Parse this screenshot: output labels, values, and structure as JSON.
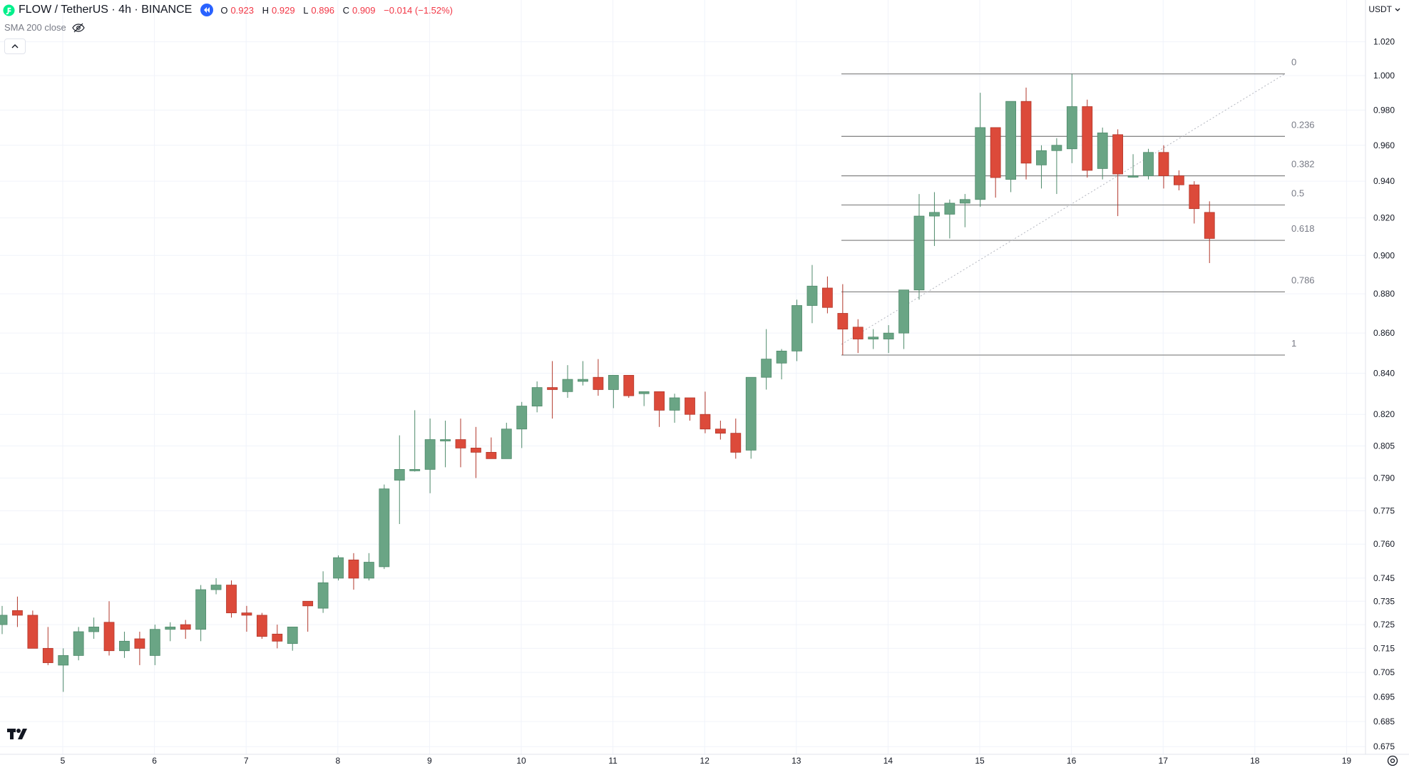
{
  "header": {
    "symbol": "FLOW / TetherUS · 4h · BINANCE",
    "ohlc": {
      "o_label": "O",
      "o": "0.923",
      "h_label": "H",
      "h": "0.929",
      "l_label": "L",
      "l": "0.896",
      "c_label": "C",
      "c": "0.909",
      "change": "−0.014 (−1.52%)"
    }
  },
  "indicator": {
    "label": "SMA 200 close"
  },
  "currency": {
    "label": "USDT"
  },
  "colors": {
    "up": "#6aa585",
    "down": "#dc4a3a",
    "fib": "#8a8a8a",
    "grid": "#f0f3fa",
    "text": "#131722"
  },
  "chart_data": {
    "type": "candlestick",
    "title": "FLOW / TetherUS · 4h · BINANCE",
    "y_scale": "log",
    "y_ticks": [
      1.02,
      1.0,
      0.98,
      0.96,
      0.94,
      0.92,
      0.9,
      0.88,
      0.86,
      0.84,
      0.82,
      0.805,
      0.79,
      0.775,
      0.76,
      0.745,
      0.735,
      0.725,
      0.715,
      0.705,
      0.695,
      0.685,
      0.675
    ],
    "y_tick_labels": [
      "1.020",
      "1.000",
      "0.980",
      "0.960",
      "0.940",
      "0.920",
      "0.900",
      "0.880",
      "0.860",
      "0.840",
      "0.820",
      "0.805",
      "0.790",
      "0.775",
      "0.760",
      "0.745",
      "0.735",
      "0.725",
      "0.715",
      "0.705",
      "0.695",
      "0.685",
      "0.675"
    ],
    "x_ticks": [
      "5",
      "6",
      "7",
      "8",
      "9",
      "10",
      "11",
      "12",
      "13",
      "14",
      "15",
      "16",
      "17",
      "18",
      "19"
    ],
    "candles": [
      [
        0.725,
        0.733,
        0.721,
        0.729
      ],
      [
        0.731,
        0.737,
        0.724,
        0.729
      ],
      [
        0.729,
        0.731,
        0.716,
        0.715
      ],
      [
        0.715,
        0.724,
        0.708,
        0.709
      ],
      [
        0.708,
        0.715,
        0.697,
        0.712
      ],
      [
        0.712,
        0.724,
        0.71,
        0.722
      ],
      [
        0.722,
        0.728,
        0.719,
        0.724
      ],
      [
        0.726,
        0.735,
        0.712,
        0.714
      ],
      [
        0.714,
        0.722,
        0.711,
        0.718
      ],
      [
        0.719,
        0.722,
        0.708,
        0.715
      ],
      [
        0.712,
        0.725,
        0.708,
        0.723
      ],
      [
        0.723,
        0.726,
        0.718,
        0.724
      ],
      [
        0.725,
        0.727,
        0.719,
        0.723
      ],
      [
        0.723,
        0.742,
        0.718,
        0.74
      ],
      [
        0.74,
        0.745,
        0.738,
        0.742
      ],
      [
        0.742,
        0.744,
        0.728,
        0.73
      ],
      [
        0.73,
        0.733,
        0.722,
        0.729
      ],
      [
        0.729,
        0.73,
        0.719,
        0.72
      ],
      [
        0.721,
        0.725,
        0.715,
        0.718
      ],
      [
        0.717,
        0.724,
        0.714,
        0.724
      ],
      [
        0.735,
        0.735,
        0.722,
        0.733
      ],
      [
        0.732,
        0.748,
        0.73,
        0.743
      ],
      [
        0.745,
        0.755,
        0.744,
        0.754
      ],
      [
        0.753,
        0.756,
        0.74,
        0.745
      ],
      [
        0.745,
        0.756,
        0.744,
        0.752
      ],
      [
        0.75,
        0.787,
        0.749,
        0.785
      ],
      [
        0.789,
        0.81,
        0.769,
        0.794
      ],
      [
        0.794,
        0.822,
        0.793,
        0.794
      ],
      [
        0.794,
        0.818,
        0.783,
        0.808
      ],
      [
        0.808,
        0.817,
        0.795,
        0.808
      ],
      [
        0.808,
        0.818,
        0.795,
        0.804
      ],
      [
        0.804,
        0.814,
        0.79,
        0.802
      ],
      [
        0.802,
        0.809,
        0.8,
        0.799
      ],
      [
        0.799,
        0.816,
        0.799,
        0.813
      ],
      [
        0.813,
        0.826,
        0.804,
        0.824
      ],
      [
        0.824,
        0.836,
        0.821,
        0.833
      ],
      [
        0.833,
        0.846,
        0.818,
        0.832
      ],
      [
        0.831,
        0.844,
        0.828,
        0.837
      ],
      [
        0.836,
        0.846,
        0.834,
        0.837
      ],
      [
        0.838,
        0.847,
        0.829,
        0.832
      ],
      [
        0.832,
        0.839,
        0.823,
        0.839
      ],
      [
        0.839,
        0.839,
        0.828,
        0.829
      ],
      [
        0.83,
        0.831,
        0.824,
        0.831
      ],
      [
        0.831,
        0.831,
        0.814,
        0.822
      ],
      [
        0.822,
        0.83,
        0.816,
        0.828
      ],
      [
        0.828,
        0.827,
        0.817,
        0.82
      ],
      [
        0.82,
        0.831,
        0.811,
        0.813
      ],
      [
        0.813,
        0.817,
        0.808,
        0.811
      ],
      [
        0.811,
        0.818,
        0.799,
        0.802
      ],
      [
        0.803,
        0.838,
        0.799,
        0.838
      ],
      [
        0.838,
        0.862,
        0.832,
        0.847
      ],
      [
        0.845,
        0.852,
        0.837,
        0.851
      ],
      [
        0.851,
        0.877,
        0.846,
        0.874
      ],
      [
        0.874,
        0.895,
        0.865,
        0.884
      ],
      [
        0.883,
        0.889,
        0.87,
        0.873
      ],
      [
        0.87,
        0.885,
        0.849,
        0.862
      ],
      [
        0.863,
        0.867,
        0.85,
        0.857
      ],
      [
        0.857,
        0.862,
        0.852,
        0.858
      ],
      [
        0.857,
        0.864,
        0.85,
        0.86
      ],
      [
        0.86,
        0.881,
        0.852,
        0.882
      ],
      [
        0.882,
        0.933,
        0.877,
        0.921
      ],
      [
        0.921,
        0.934,
        0.905,
        0.923
      ],
      [
        0.922,
        0.93,
        0.909,
        0.928
      ],
      [
        0.928,
        0.933,
        0.915,
        0.93
      ],
      [
        0.93,
        0.99,
        0.926,
        0.97
      ],
      [
        0.97,
        0.968,
        0.931,
        0.942
      ],
      [
        0.941,
        0.985,
        0.934,
        0.985
      ],
      [
        0.985,
        0.993,
        0.941,
        0.95
      ],
      [
        0.949,
        0.96,
        0.936,
        0.957
      ],
      [
        0.957,
        0.964,
        0.933,
        0.96
      ],
      [
        0.958,
        1.001,
        0.95,
        0.982
      ],
      [
        0.982,
        0.986,
        0.942,
        0.946
      ],
      [
        0.947,
        0.97,
        0.941,
        0.967
      ],
      [
        0.966,
        0.969,
        0.921,
        0.944
      ],
      [
        0.943,
        0.955,
        0.942,
        0.943
      ],
      [
        0.943,
        0.958,
        0.941,
        0.956
      ],
      [
        0.956,
        0.96,
        0.936,
        0.943
      ],
      [
        0.943,
        0.946,
        0.935,
        0.938
      ],
      [
        0.938,
        0.94,
        0.917,
        0.925
      ],
      [
        0.923,
        0.929,
        0.896,
        0.909
      ]
    ],
    "fibonacci": {
      "levels": [
        "0",
        "0.236",
        "0.382",
        "0.5",
        "0.618",
        "0.786",
        "1"
      ],
      "prices": [
        1.001,
        0.965,
        0.943,
        0.927,
        0.908,
        0.881,
        0.849
      ]
    }
  }
}
